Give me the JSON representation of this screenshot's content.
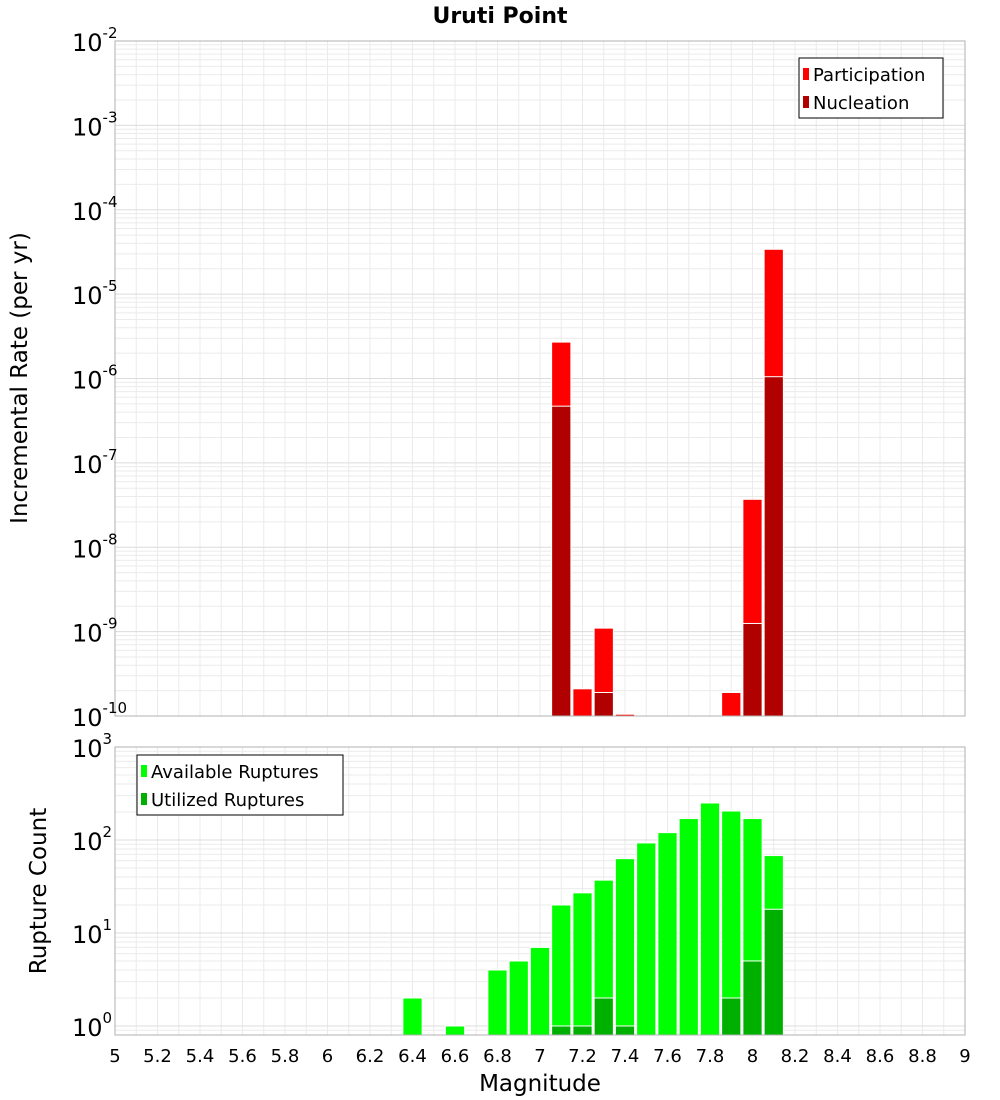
{
  "chart_data": [
    {
      "type": "bar",
      "title": "Uruti Point",
      "xlabel": "Magnitude",
      "ylabel": "Incremental Rate (per yr)",
      "yscale": "log",
      "ylim": [
        1e-10,
        0.01
      ],
      "xlim": [
        5,
        9
      ],
      "grid": true,
      "legend_position": "top-right",
      "bin_width": 0.1,
      "x": [
        7.1,
        7.2,
        7.3,
        7.4,
        7.9,
        8.0,
        8.1
      ],
      "series": [
        {
          "name": "Participation",
          "color": "#ff0000",
          "values": [
            2.7e-06,
            2.1e-10,
            1.1e-09,
            1.05e-10,
            1.9e-10,
            3.7e-08,
            3.4e-05
          ]
        },
        {
          "name": "Nucleation",
          "color": "#b00000",
          "values": [
            4.7e-07,
            null,
            1.9e-10,
            null,
            null,
            1.25e-09,
            1.05e-06
          ]
        }
      ],
      "y_tick_exponents": [
        "-10",
        "-9",
        "-8",
        "-7",
        "-6",
        "-5",
        "-4",
        "-3",
        "-2"
      ]
    },
    {
      "type": "bar",
      "xlabel": "Magnitude",
      "ylabel": "Rupture Count",
      "yscale": "log",
      "ylim": [
        0.8,
        1000
      ],
      "xlim": [
        5,
        9
      ],
      "grid": true,
      "legend_position": "top-left",
      "bin_width": 0.1,
      "x": [
        6.4,
        6.6,
        6.8,
        6.9,
        7.0,
        7.1,
        7.2,
        7.3,
        7.4,
        7.5,
        7.6,
        7.7,
        7.8,
        7.9,
        8.0,
        8.1
      ],
      "series": [
        {
          "name": "Available Ruptures",
          "color": "#00ff00",
          "values": [
            2,
            1,
            4,
            5,
            7,
            20,
            27,
            37,
            63,
            93,
            120,
            170,
            250,
            205,
            170,
            68
          ]
        },
        {
          "name": "Utilized Ruptures",
          "color": "#00b000",
          "values": [
            null,
            null,
            null,
            null,
            null,
            1,
            1,
            2,
            1,
            null,
            null,
            null,
            null,
            2,
            5,
            18
          ]
        }
      ],
      "y_tick_exponents": [
        "0",
        "1",
        "2",
        "3"
      ],
      "x_tick_labels": [
        "5",
        "5.2",
        "5.4",
        "5.6",
        "5.8",
        "6",
        "6.2",
        "6.4",
        "6.6",
        "6.8",
        "7",
        "7.2",
        "7.4",
        "7.6",
        "7.8",
        "8",
        "8.2",
        "8.4",
        "8.6",
        "8.8",
        "9"
      ]
    }
  ],
  "colors": {
    "plot_border": "#b0b0b0",
    "grid": "#ebebeb",
    "bar_outline": "#ffffff"
  }
}
